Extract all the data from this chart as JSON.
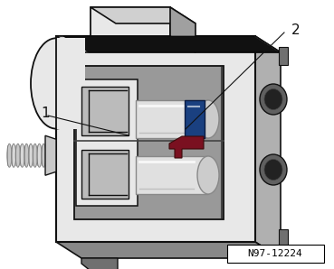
{
  "ref_number": "N97-12224",
  "label_1": "1",
  "label_2": "2",
  "background_color": "#ffffff",
  "body_light": "#e8e8e8",
  "body_mid": "#c8c8c8",
  "body_dark": "#888888",
  "body_darker": "#555555",
  "black": "#111111",
  "white": "#ffffff",
  "blue_color": "#1a4080",
  "red_color": "#7a1020",
  "screw_light": "#d0d0d0",
  "screw_dark": "#909090",
  "inner_bg": "#b0b0b0",
  "inner_dark": "#606060",
  "tab_top_color": "#d0d0d0",
  "tab_side_color": "#a0a0a0",
  "right_face_color": "#b0b0b0",
  "label_fontsize": 11,
  "ref_fontsize": 8
}
